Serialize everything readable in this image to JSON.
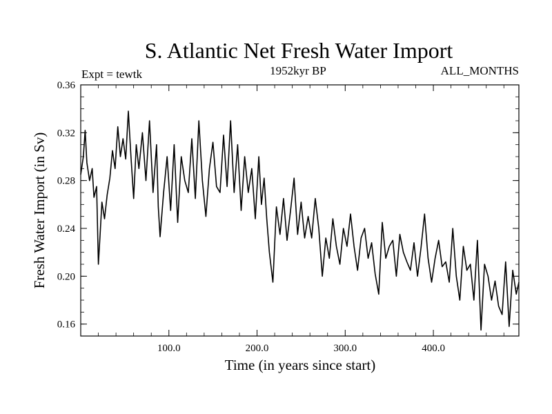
{
  "chart_data": {
    "type": "line",
    "title": "S. Atlantic Net Fresh Water Import",
    "subtitle_left": "Expt = tewtk",
    "subtitle_center": "1952kyr BP",
    "subtitle_right": "ALL_MONTHS",
    "xlabel": "Time (in years since start)",
    "ylabel": "Fresh Water Import (in Sv)",
    "xlim": [
      0,
      497
    ],
    "ylim": [
      0.15,
      0.36
    ],
    "xticks": [
      100,
      200,
      300,
      400
    ],
    "xtick_labels": [
      "100.0",
      "200.0",
      "300.0",
      "400.0"
    ],
    "yticks": [
      0.16,
      0.2,
      0.24,
      0.28,
      0.32,
      0.36
    ],
    "ytick_labels": [
      "0.16",
      "0.20",
      "0.24",
      "0.28",
      "0.32",
      "0.36"
    ],
    "grid": false,
    "line_color": "#000000",
    "series": [
      {
        "name": "fresh_water_import",
        "x": [
          0,
          3,
          5,
          7,
          10,
          13,
          15,
          18,
          20,
          22,
          24,
          27,
          30,
          33,
          36,
          39,
          42,
          45,
          48,
          51,
          54,
          57,
          60,
          63,
          66,
          70,
          74,
          78,
          82,
          86,
          88,
          90,
          94,
          98,
          102,
          106,
          110,
          114,
          118,
          122,
          126,
          130,
          134,
          138,
          142,
          146,
          150,
          154,
          158,
          162,
          166,
          170,
          174,
          178,
          182,
          186,
          190,
          194,
          198,
          202,
          205,
          208,
          211,
          214,
          218,
          222,
          226,
          230,
          234,
          238,
          242,
          246,
          250,
          254,
          258,
          262,
          266,
          270,
          274,
          278,
          282,
          286,
          290,
          294,
          298,
          302,
          306,
          310,
          314,
          318,
          322,
          326,
          330,
          334,
          338,
          342,
          346,
          350,
          354,
          358,
          362,
          366,
          370,
          374,
          378,
          382,
          386,
          390,
          394,
          398,
          402,
          406,
          410,
          414,
          418,
          422,
          426,
          430,
          434,
          438,
          442,
          446,
          450,
          454,
          458,
          462,
          466,
          470,
          474,
          478,
          482,
          486,
          490,
          494,
          497
        ],
        "values": [
          0.285,
          0.3,
          0.322,
          0.295,
          0.28,
          0.29,
          0.266,
          0.275,
          0.21,
          0.235,
          0.262,
          0.248,
          0.268,
          0.282,
          0.305,
          0.29,
          0.325,
          0.3,
          0.315,
          0.298,
          0.338,
          0.3,
          0.265,
          0.31,
          0.29,
          0.32,
          0.28,
          0.33,
          0.27,
          0.31,
          0.258,
          0.233,
          0.27,
          0.3,
          0.255,
          0.31,
          0.245,
          0.3,
          0.28,
          0.27,
          0.315,
          0.265,
          0.33,
          0.28,
          0.25,
          0.29,
          0.312,
          0.275,
          0.27,
          0.318,
          0.275,
          0.33,
          0.27,
          0.31,
          0.255,
          0.3,
          0.27,
          0.29,
          0.248,
          0.3,
          0.26,
          0.282,
          0.248,
          0.22,
          0.195,
          0.258,
          0.235,
          0.265,
          0.23,
          0.255,
          0.282,
          0.235,
          0.262,
          0.232,
          0.25,
          0.232,
          0.265,
          0.24,
          0.2,
          0.232,
          0.215,
          0.248,
          0.225,
          0.21,
          0.24,
          0.225,
          0.252,
          0.225,
          0.205,
          0.232,
          0.24,
          0.215,
          0.228,
          0.202,
          0.185,
          0.245,
          0.215,
          0.225,
          0.23,
          0.2,
          0.235,
          0.22,
          0.212,
          0.205,
          0.228,
          0.2,
          0.224,
          0.252,
          0.215,
          0.195,
          0.215,
          0.23,
          0.208,
          0.212,
          0.195,
          0.24,
          0.2,
          0.18,
          0.225,
          0.205,
          0.21,
          0.18,
          0.23,
          0.155,
          0.21,
          0.2,
          0.18,
          0.196,
          0.175,
          0.168,
          0.212,
          0.158,
          0.205,
          0.185,
          0.195
        ]
      }
    ]
  }
}
